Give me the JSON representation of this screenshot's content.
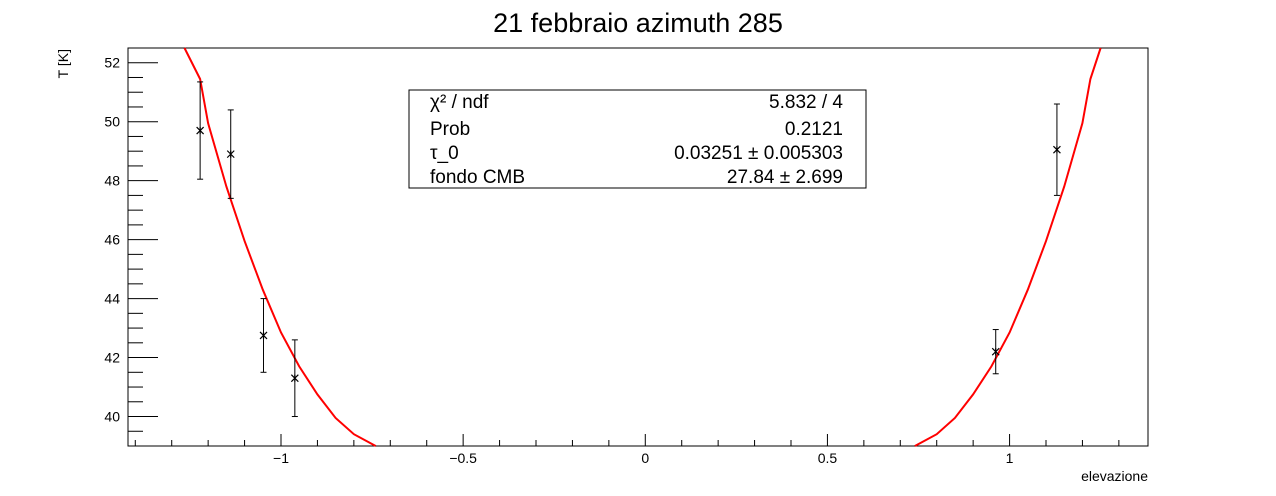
{
  "chart_data": {
    "type": "scatter",
    "title": "21 febbraio azimuth 285",
    "xlabel": "elevazione",
    "ylabel": "T [K]",
    "xlim": [
      -1.42,
      1.38
    ],
    "ylim": [
      39.0,
      52.5
    ],
    "grid": false,
    "x_ticks": [
      {
        "value": -1,
        "label": "−1"
      },
      {
        "value": -0.5,
        "label": "−0.5"
      },
      {
        "value": 0,
        "label": "0"
      },
      {
        "value": 0.5,
        "label": "0.5"
      },
      {
        "value": 1,
        "label": "1"
      }
    ],
    "y_ticks": [
      {
        "value": 40,
        "label": "40"
      },
      {
        "value": 42,
        "label": "42"
      },
      {
        "value": 44,
        "label": "44"
      },
      {
        "value": 46,
        "label": "46"
      },
      {
        "value": 48,
        "label": "48"
      },
      {
        "value": 50,
        "label": "50"
      },
      {
        "value": 52,
        "label": "52"
      }
    ],
    "points": [
      {
        "x": -1.222,
        "y": 49.7,
        "yerr": 1.65
      },
      {
        "x": -1.138,
        "y": 48.9,
        "yerr": 1.5
      },
      {
        "x": -1.048,
        "y": 42.75,
        "yerr": 1.25
      },
      {
        "x": -0.962,
        "y": 41.3,
        "yerr": 1.3
      },
      {
        "x": 0.962,
        "y": 42.2,
        "yerr": 0.75
      },
      {
        "x": 1.13,
        "y": 49.05,
        "yerr": 1.55
      }
    ],
    "fit": {
      "color": "#ff0000",
      "parameters": {
        "tau_0": 0.03251,
        "fondo_CMB": 27.84
      },
      "curve_left": [
        {
          "x": -1.265,
          "y": 52.5
        },
        {
          "x": -1.222,
          "y": 51.45
        },
        {
          "x": -1.2,
          "y": 49.95
        },
        {
          "x": -1.15,
          "y": 47.8
        },
        {
          "x": -1.1,
          "y": 45.95
        },
        {
          "x": -1.05,
          "y": 44.3
        },
        {
          "x": -1.0,
          "y": 42.85
        },
        {
          "x": -0.95,
          "y": 41.7
        },
        {
          "x": -0.9,
          "y": 40.75
        },
        {
          "x": -0.85,
          "y": 39.95
        },
        {
          "x": -0.8,
          "y": 39.4
        },
        {
          "x": -0.74,
          "y": 39.0
        }
      ],
      "curve_right": [
        {
          "x": 0.74,
          "y": 39.0
        },
        {
          "x": 0.8,
          "y": 39.4
        },
        {
          "x": 0.85,
          "y": 39.95
        },
        {
          "x": 0.9,
          "y": 40.75
        },
        {
          "x": 0.95,
          "y": 41.7
        },
        {
          "x": 1.0,
          "y": 42.85
        },
        {
          "x": 1.05,
          "y": 44.3
        },
        {
          "x": 1.1,
          "y": 45.95
        },
        {
          "x": 1.15,
          "y": 47.8
        },
        {
          "x": 1.2,
          "y": 49.95
        },
        {
          "x": 1.222,
          "y": 51.45
        },
        {
          "x": 1.25,
          "y": 52.5
        }
      ]
    },
    "stats_box": {
      "placement": "top-center",
      "rows": [
        {
          "name": "ndf",
          "label": "χ² / ndf",
          "value": "5.832 / 4"
        },
        {
          "name": "prob",
          "label": "Prob",
          "value": "0.2121"
        },
        {
          "name": "tau",
          "label": "τ_0",
          "value": "0.03251 ± 0.005303"
        },
        {
          "name": "fondo",
          "label": "fondo CMB",
          "value": "27.84 ± 2.699"
        }
      ]
    }
  }
}
